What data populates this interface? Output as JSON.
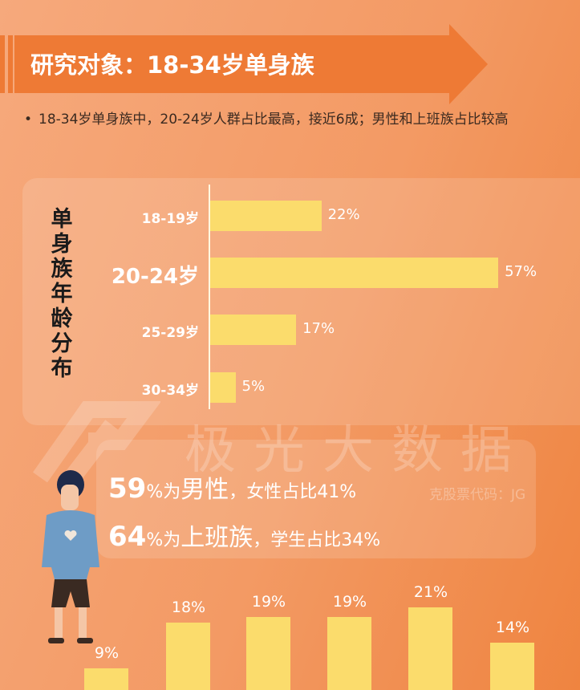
{
  "header": {
    "title": "研究对象：18-34岁单身族"
  },
  "bullet": "18-34岁单身族中，20-24岁人群占比最高，接近6成；男性和上班族占比较高",
  "watermark": {
    "brand": "极光大数据",
    "stock": "克股票代码：JG"
  },
  "stats": [
    {
      "num": "59",
      "pct": "%为",
      "key": "男性",
      "rest": "，女性占比41%"
    },
    {
      "num": "64",
      "pct": "%为",
      "key": "上班族",
      "rest": "，学生占比34%"
    }
  ],
  "colors": {
    "bar": "#fbdc6c",
    "banner": "#ee7a35"
  },
  "chart_data": [
    {
      "type": "bar",
      "orientation": "horizontal",
      "title": "单身族年龄分布",
      "categories": [
        "18-19岁",
        "20-24岁",
        "25-29岁",
        "30-34岁"
      ],
      "values": [
        22,
        57,
        17,
        5
      ],
      "labels": [
        "22%",
        "57%",
        "17%",
        "5%"
      ],
      "unit": "%"
    },
    {
      "type": "bar",
      "orientation": "vertical",
      "categories": [],
      "values": [
        9,
        18,
        19,
        19,
        21,
        14
      ],
      "labels": [
        "9%",
        "18%",
        "19%",
        "19%",
        "21%",
        "14%"
      ],
      "unit": "%"
    }
  ]
}
